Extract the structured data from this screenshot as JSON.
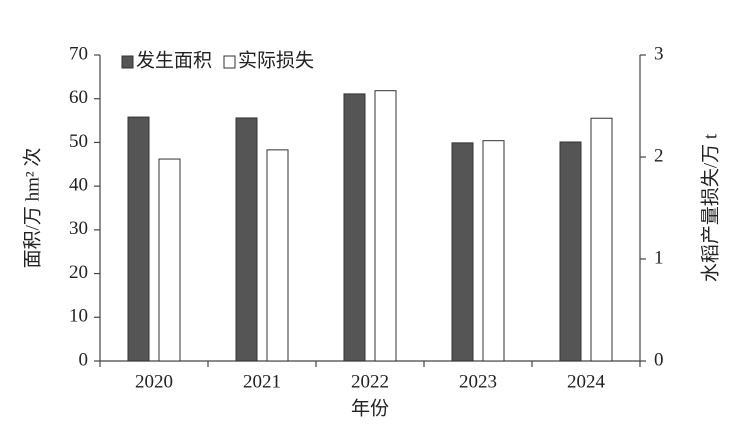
{
  "chart_data": {
    "type": "bar",
    "categories": [
      "2020",
      "2021",
      "2022",
      "2023",
      "2024"
    ],
    "xlabel": "年份",
    "ylabel": "面积/万 hm² 次",
    "y2label": "水稻产量损失/万 t",
    "series": [
      {
        "name": "发生面积",
        "color": "#555555",
        "values": [
          55.8,
          55.6,
          61.1,
          49.9,
          50.1
        ]
      },
      {
        "name": "实际损失",
        "color": "#ffffff",
        "axis": "y2",
        "values": [
          1.98,
          2.07,
          2.65,
          2.16,
          2.38
        ]
      }
    ],
    "ylim": [
      0,
      70
    ],
    "yticks": [
      0,
      10,
      20,
      30,
      40,
      50,
      60,
      70
    ],
    "y2lim": [
      0,
      3
    ],
    "y2ticks": [
      0,
      1,
      2,
      3
    ],
    "grid": false,
    "legend": "top-left"
  }
}
